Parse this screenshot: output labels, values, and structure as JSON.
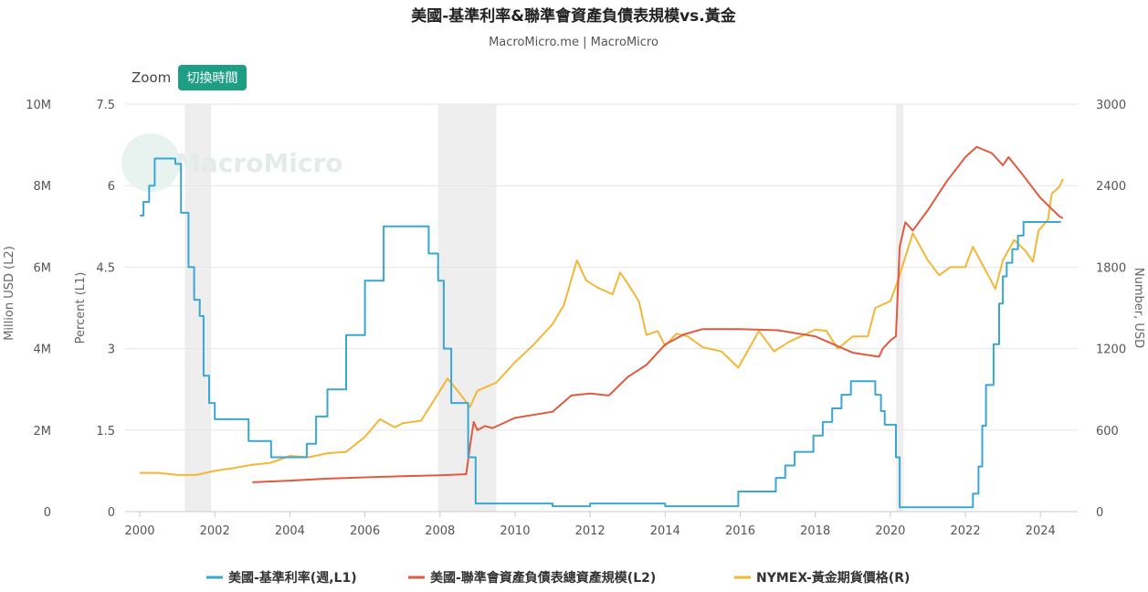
{
  "header": {
    "title": "美國-基準利率&聯準會資產負債表規模vs.黃金",
    "subtitle": "MacroMicro.me | MacroMicro"
  },
  "toolbar": {
    "zoom_label": "Zoom",
    "switch_time_label": "切換時間"
  },
  "watermark": "MacroMicro",
  "colors": {
    "rate": "#3aa7d3",
    "balance_sheet": "#e05a3f",
    "gold": "#f2b737",
    "recession": "#eeeeee",
    "grid": "#e6e6e6",
    "button": "#1f9e86"
  },
  "chart_data": {
    "type": "line",
    "title": "美國-基準利率&聯準會資產負債表規模vs.黃金",
    "subtitle": "MacroMicro.me | MacroMicro",
    "x_ticks": [
      "2000",
      "2002",
      "2004",
      "2006",
      "2008",
      "2010",
      "2012",
      "2014",
      "2016",
      "2018",
      "2020",
      "2022",
      "2024"
    ],
    "xlim": [
      2000.0,
      2024.7
    ],
    "axes": {
      "left_outer": {
        "label": "Million USD (L2)",
        "ticks": [
          "0",
          "2M",
          "4M",
          "6M",
          "8M",
          "10M"
        ],
        "range": [
          0,
          10000000
        ]
      },
      "left_inner": {
        "label": "Percent (L1)",
        "ticks": [
          "0",
          "1.5",
          "3",
          "4.5",
          "6",
          "7.5"
        ],
        "range": [
          0,
          7.5
        ]
      },
      "right": {
        "label": "Number, USD",
        "ticks": [
          "0",
          "600",
          "1200",
          "1800",
          "2400",
          "3000"
        ],
        "range": [
          0,
          3000
        ]
      }
    },
    "recessions": [
      [
        2001.2,
        2001.9
      ],
      [
        2007.95,
        2009.5
      ],
      [
        2020.15,
        2020.35
      ]
    ],
    "grid": true,
    "legend_position": "bottom",
    "series": [
      {
        "name": "美國-基準利率(週,L1)",
        "axis": "left_inner",
        "step": true,
        "points": [
          [
            2000.0,
            5.45
          ],
          [
            2000.1,
            5.7
          ],
          [
            2000.25,
            6.0
          ],
          [
            2000.4,
            6.5
          ],
          [
            2000.6,
            6.5
          ],
          [
            2000.95,
            6.4
          ],
          [
            2001.1,
            5.5
          ],
          [
            2001.3,
            4.5
          ],
          [
            2001.45,
            3.9
          ],
          [
            2001.6,
            3.6
          ],
          [
            2001.7,
            2.5
          ],
          [
            2001.85,
            2.0
          ],
          [
            2002.0,
            1.7
          ],
          [
            2002.9,
            1.3
          ],
          [
            2003.5,
            1.0
          ],
          [
            2004.45,
            1.25
          ],
          [
            2004.7,
            1.75
          ],
          [
            2005.0,
            2.25
          ],
          [
            2005.5,
            3.25
          ],
          [
            2006.0,
            4.25
          ],
          [
            2006.5,
            5.25
          ],
          [
            2007.6,
            5.25
          ],
          [
            2007.7,
            4.75
          ],
          [
            2007.95,
            4.25
          ],
          [
            2008.1,
            3.0
          ],
          [
            2008.3,
            2.0
          ],
          [
            2008.75,
            1.0
          ],
          [
            2008.95,
            0.15
          ],
          [
            2010.0,
            0.15
          ],
          [
            2011.0,
            0.1
          ],
          [
            2012.0,
            0.15
          ],
          [
            2014.0,
            0.1
          ],
          [
            2015.95,
            0.37
          ],
          [
            2016.95,
            0.62
          ],
          [
            2017.2,
            0.85
          ],
          [
            2017.45,
            1.1
          ],
          [
            2017.95,
            1.4
          ],
          [
            2018.2,
            1.65
          ],
          [
            2018.45,
            1.9
          ],
          [
            2018.7,
            2.15
          ],
          [
            2018.95,
            2.4
          ],
          [
            2019.6,
            2.15
          ],
          [
            2019.75,
            1.85
          ],
          [
            2019.85,
            1.6
          ],
          [
            2020.15,
            1.0
          ],
          [
            2020.25,
            0.08
          ],
          [
            2022.2,
            0.33
          ],
          [
            2022.35,
            0.83
          ],
          [
            2022.45,
            1.58
          ],
          [
            2022.55,
            2.33
          ],
          [
            2022.75,
            3.08
          ],
          [
            2022.9,
            3.83
          ],
          [
            2023.0,
            4.33
          ],
          [
            2023.1,
            4.58
          ],
          [
            2023.25,
            4.83
          ],
          [
            2023.4,
            5.08
          ],
          [
            2023.55,
            5.33
          ],
          [
            2024.55,
            5.33
          ]
        ]
      },
      {
        "name": "美國-聯準會資產負債表總資產規模(L2)",
        "axis": "left_outer",
        "step": false,
        "points": [
          [
            2003.0,
            720000
          ],
          [
            2004.0,
            760000
          ],
          [
            2005.0,
            810000
          ],
          [
            2006.0,
            840000
          ],
          [
            2007.0,
            870000
          ],
          [
            2008.0,
            890000
          ],
          [
            2008.7,
            920000
          ],
          [
            2008.8,
            1600000
          ],
          [
            2008.9,
            2200000
          ],
          [
            2009.0,
            2000000
          ],
          [
            2009.2,
            2100000
          ],
          [
            2009.4,
            2050000
          ],
          [
            2010.0,
            2300000
          ],
          [
            2011.0,
            2450000
          ],
          [
            2011.5,
            2850000
          ],
          [
            2012.0,
            2900000
          ],
          [
            2012.5,
            2850000
          ],
          [
            2013.0,
            3300000
          ],
          [
            2013.5,
            3600000
          ],
          [
            2014.0,
            4100000
          ],
          [
            2014.5,
            4350000
          ],
          [
            2015.0,
            4480000
          ],
          [
            2016.0,
            4480000
          ],
          [
            2017.0,
            4450000
          ],
          [
            2018.0,
            4300000
          ],
          [
            2019.0,
            3900000
          ],
          [
            2019.7,
            3800000
          ],
          [
            2019.8,
            4000000
          ],
          [
            2020.0,
            4200000
          ],
          [
            2020.15,
            4300000
          ],
          [
            2020.25,
            6500000
          ],
          [
            2020.4,
            7100000
          ],
          [
            2020.5,
            7000000
          ],
          [
            2020.6,
            6900000
          ],
          [
            2021.0,
            7400000
          ],
          [
            2021.5,
            8100000
          ],
          [
            2022.0,
            8700000
          ],
          [
            2022.3,
            8950000
          ],
          [
            2022.7,
            8800000
          ],
          [
            2023.0,
            8500000
          ],
          [
            2023.15,
            8700000
          ],
          [
            2023.5,
            8300000
          ],
          [
            2024.0,
            7700000
          ],
          [
            2024.5,
            7250000
          ],
          [
            2024.6,
            7200000
          ]
        ]
      },
      {
        "name": "NYMEX-黃金期貨價格(R)",
        "axis": "right",
        "step": false,
        "points": [
          [
            2000.0,
            285
          ],
          [
            2000.5,
            285
          ],
          [
            2001.0,
            270
          ],
          [
            2001.5,
            270
          ],
          [
            2002.0,
            300
          ],
          [
            2002.5,
            320
          ],
          [
            2003.0,
            345
          ],
          [
            2003.5,
            360
          ],
          [
            2004.0,
            410
          ],
          [
            2004.5,
            400
          ],
          [
            2005.0,
            430
          ],
          [
            2005.5,
            440
          ],
          [
            2006.0,
            550
          ],
          [
            2006.4,
            680
          ],
          [
            2006.8,
            620
          ],
          [
            2007.0,
            650
          ],
          [
            2007.5,
            670
          ],
          [
            2008.0,
            890
          ],
          [
            2008.2,
            980
          ],
          [
            2008.5,
            880
          ],
          [
            2008.8,
            770
          ],
          [
            2009.0,
            890
          ],
          [
            2009.5,
            950
          ],
          [
            2010.0,
            1100
          ],
          [
            2010.5,
            1230
          ],
          [
            2011.0,
            1380
          ],
          [
            2011.3,
            1520
          ],
          [
            2011.65,
            1850
          ],
          [
            2011.9,
            1700
          ],
          [
            2012.2,
            1650
          ],
          [
            2012.6,
            1600
          ],
          [
            2012.8,
            1760
          ],
          [
            2013.0,
            1680
          ],
          [
            2013.3,
            1550
          ],
          [
            2013.5,
            1300
          ],
          [
            2013.8,
            1330
          ],
          [
            2014.0,
            1220
          ],
          [
            2014.3,
            1310
          ],
          [
            2014.6,
            1290
          ],
          [
            2015.0,
            1210
          ],
          [
            2015.5,
            1180
          ],
          [
            2015.95,
            1060
          ],
          [
            2016.5,
            1330
          ],
          [
            2016.9,
            1180
          ],
          [
            2017.3,
            1250
          ],
          [
            2017.7,
            1300
          ],
          [
            2018.0,
            1340
          ],
          [
            2018.3,
            1330
          ],
          [
            2018.6,
            1200
          ],
          [
            2019.0,
            1290
          ],
          [
            2019.4,
            1290
          ],
          [
            2019.6,
            1500
          ],
          [
            2020.0,
            1550
          ],
          [
            2020.2,
            1700
          ],
          [
            2020.6,
            2050
          ],
          [
            2021.0,
            1850
          ],
          [
            2021.3,
            1740
          ],
          [
            2021.6,
            1800
          ],
          [
            2022.0,
            1800
          ],
          [
            2022.2,
            1950
          ],
          [
            2022.8,
            1640
          ],
          [
            2023.0,
            1850
          ],
          [
            2023.3,
            2000
          ],
          [
            2023.6,
            1920
          ],
          [
            2023.8,
            1840
          ],
          [
            2023.95,
            2070
          ],
          [
            2024.2,
            2150
          ],
          [
            2024.3,
            2340
          ],
          [
            2024.5,
            2390
          ],
          [
            2024.6,
            2450
          ]
        ]
      }
    ]
  }
}
